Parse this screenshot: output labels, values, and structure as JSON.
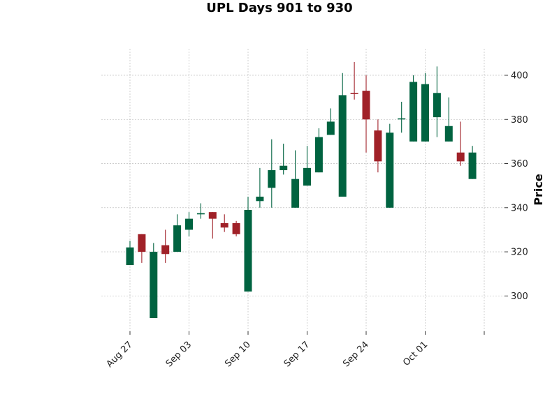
{
  "chart_data": {
    "type": "candlestick",
    "title": "UPL Days 901 to 930",
    "ylabel": "Price",
    "ylim": [
      284,
      412
    ],
    "yticks": [
      300,
      320,
      340,
      360,
      380,
      400
    ],
    "grid": true,
    "y_axis_side": "right",
    "colors": {
      "up": "#006340",
      "down": "#a02128"
    },
    "xticks": [
      {
        "label": "Aug 27",
        "date": "2024-08-27"
      },
      {
        "label": "Sep 03",
        "date": "2024-09-03"
      },
      {
        "label": "Sep 10",
        "date": "2024-09-10"
      },
      {
        "label": "Sep 17",
        "date": "2024-09-17"
      },
      {
        "label": "Sep 24",
        "date": "2024-09-24"
      },
      {
        "label": "Oct 01",
        "date": "2024-10-01"
      },
      {
        "label": "",
        "date": "2024-10-08"
      }
    ],
    "candles": [
      {
        "date": "2024-08-27",
        "open": 314,
        "high": 325,
        "low": 314,
        "close": 322
      },
      {
        "date": "2024-08-28",
        "open": 328,
        "high": 328,
        "low": 315,
        "close": 320
      },
      {
        "date": "2024-08-29",
        "open": 290,
        "high": 324,
        "low": 290,
        "close": 320
      },
      {
        "date": "2024-08-30",
        "open": 323,
        "high": 330,
        "low": 315,
        "close": 319
      },
      {
        "date": "2024-09-02",
        "open": 320,
        "high": 337,
        "low": 320,
        "close": 332
      },
      {
        "date": "2024-09-03",
        "open": 330,
        "high": 338,
        "low": 327,
        "close": 335
      },
      {
        "date": "2024-09-04",
        "open": 337,
        "high": 342,
        "low": 335,
        "close": 337.5
      },
      {
        "date": "2024-09-05",
        "open": 338,
        "high": 338,
        "low": 326,
        "close": 335
      },
      {
        "date": "2024-09-06",
        "open": 333,
        "high": 337,
        "low": 329,
        "close": 331
      },
      {
        "date": "2024-09-09",
        "open": 333,
        "high": 334,
        "low": 327,
        "close": 328
      },
      {
        "date": "2024-09-10",
        "open": 302,
        "high": 345,
        "low": 302,
        "close": 339
      },
      {
        "date": "2024-09-11",
        "open": 343,
        "high": 358,
        "low": 340,
        "close": 345
      },
      {
        "date": "2024-09-12",
        "open": 349,
        "high": 371,
        "low": 340,
        "close": 357
      },
      {
        "date": "2024-09-13",
        "open": 357,
        "high": 369,
        "low": 355,
        "close": 359
      },
      {
        "date": "2024-09-16",
        "open": 340,
        "high": 366,
        "low": 340,
        "close": 353
      },
      {
        "date": "2024-09-17",
        "open": 350,
        "high": 368,
        "low": 350,
        "close": 358
      },
      {
        "date": "2024-09-18",
        "open": 356,
        "high": 376,
        "low": 356,
        "close": 372
      },
      {
        "date": "2024-09-19",
        "open": 373,
        "high": 385,
        "low": 373,
        "close": 379
      },
      {
        "date": "2024-09-20",
        "open": 345,
        "high": 401,
        "low": 345,
        "close": 391
      },
      {
        "date": "2024-09-23",
        "open": 392,
        "high": 406,
        "low": 389,
        "close": 391.5
      },
      {
        "date": "2024-09-24",
        "open": 393,
        "high": 400,
        "low": 365,
        "close": 380
      },
      {
        "date": "2024-09-25",
        "open": 375,
        "high": 380,
        "low": 356,
        "close": 361
      },
      {
        "date": "2024-09-26",
        "open": 340,
        "high": 378,
        "low": 340,
        "close": 374
      },
      {
        "date": "2024-09-27",
        "open": 380,
        "high": 388,
        "low": 374,
        "close": 380.5
      },
      {
        "date": "2024-09-30",
        "open": 370,
        "high": 400,
        "low": 370,
        "close": 397
      },
      {
        "date": "2024-10-01",
        "open": 370,
        "high": 401,
        "low": 370,
        "close": 396
      },
      {
        "date": "2024-10-02",
        "open": 381,
        "high": 404,
        "low": 372,
        "close": 392
      },
      {
        "date": "2024-10-03",
        "open": 370,
        "high": 390,
        "low": 370,
        "close": 377
      },
      {
        "date": "2024-10-04",
        "open": 365,
        "high": 379,
        "low": 359,
        "close": 361
      },
      {
        "date": "2024-10-07",
        "open": 353,
        "high": 368,
        "low": 353,
        "close": 365
      }
    ]
  }
}
